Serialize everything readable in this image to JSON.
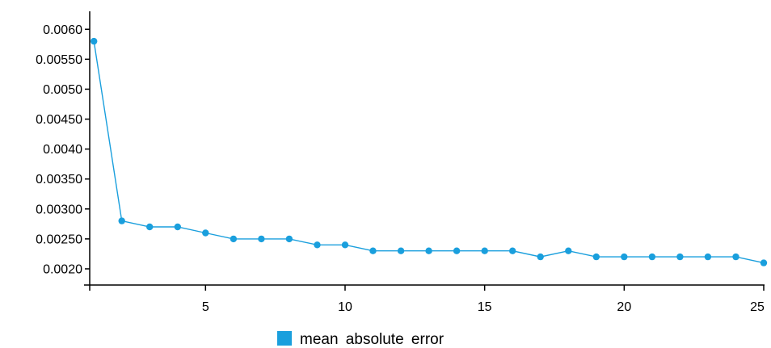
{
  "chart_data": {
    "type": "line",
    "title": "",
    "xlabel": "",
    "ylabel": "",
    "x": [
      1,
      2,
      3,
      4,
      5,
      6,
      7,
      8,
      9,
      10,
      11,
      12,
      13,
      14,
      15,
      16,
      17,
      18,
      19,
      20,
      21,
      22,
      23,
      24,
      25
    ],
    "series": [
      {
        "name": "mean absolute error",
        "color": "#1a9fdd",
        "values": [
          0.0058,
          0.0028,
          0.0027,
          0.0027,
          0.0026,
          0.0025,
          0.0025,
          0.0025,
          0.0024,
          0.0024,
          0.0023,
          0.0023,
          0.0023,
          0.0023,
          0.0023,
          0.0023,
          0.0022,
          0.0023,
          0.0022,
          0.0022,
          0.0022,
          0.0022,
          0.0022,
          0.0022,
          0.0021
        ]
      }
    ],
    "xlim": [
      0.85,
      25
    ],
    "ylim": [
      0.00173,
      0.0063
    ],
    "x_ticks": [
      {
        "value": 5,
        "label": "5"
      },
      {
        "value": 10,
        "label": "10"
      },
      {
        "value": 15,
        "label": "15"
      },
      {
        "value": 20,
        "label": "20"
      },
      {
        "value": 25,
        "label": "25"
      }
    ],
    "y_ticks": [
      {
        "value": 0.002,
        "label": "0.0020"
      },
      {
        "value": 0.0025,
        "label": "0.00250"
      },
      {
        "value": 0.003,
        "label": "0.00300"
      },
      {
        "value": 0.0035,
        "label": "0.00350"
      },
      {
        "value": 0.004,
        "label": "0.0040"
      },
      {
        "value": 0.0045,
        "label": "0.00450"
      },
      {
        "value": 0.005,
        "label": "0.0050"
      },
      {
        "value": 0.0055,
        "label": "0.00550"
      },
      {
        "value": 0.006,
        "label": "0.0060"
      }
    ],
    "grid": false,
    "legend_position": "bottom-center"
  }
}
